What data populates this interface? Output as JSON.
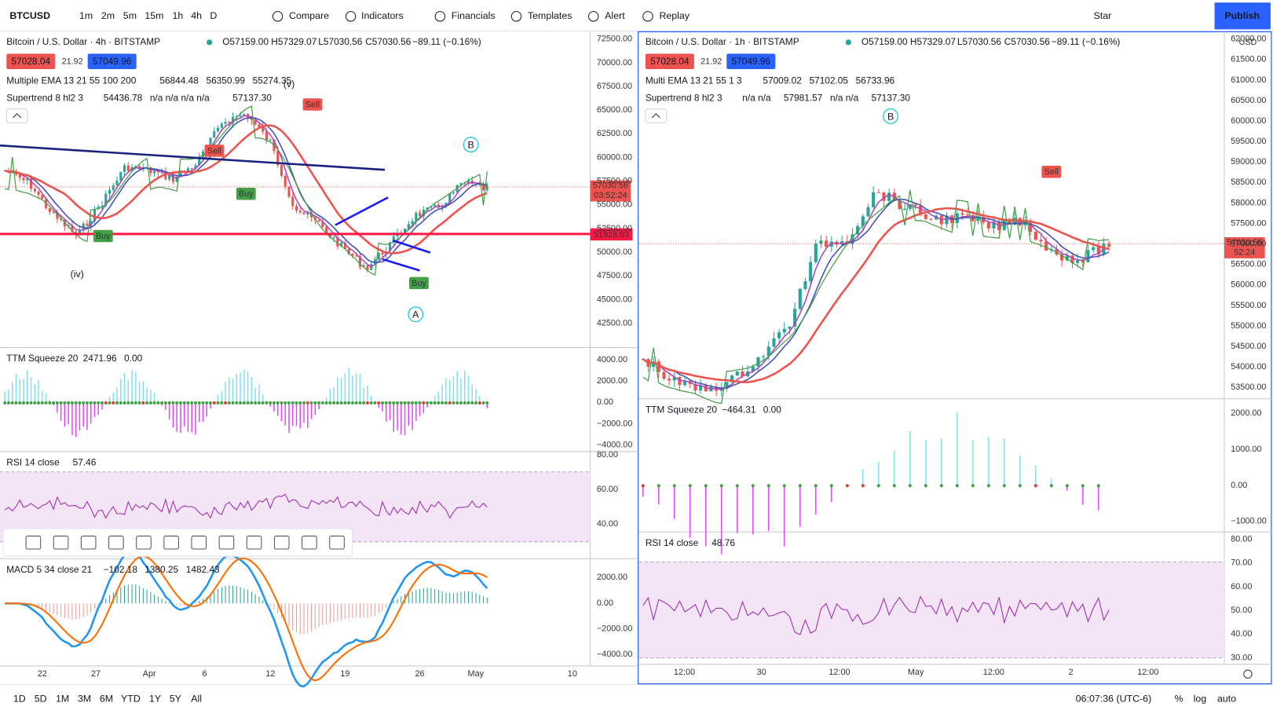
{
  "toolbar": {
    "symbol": "BTCUSD",
    "intervals": [
      "1m",
      "2m",
      "5m",
      "15m",
      "1h",
      "4h",
      "D"
    ],
    "active_interval": "1h",
    "buttons": [
      "Compare",
      "Indicators",
      "Financials",
      "Templates",
      "Alert",
      "Replay"
    ],
    "layout": "Star",
    "publish": "Publish"
  },
  "left_pane": {
    "title": "Bitcoin / U.S. Dollar · 4h · BITSTAMP",
    "ohlc": [
      "O57159.00",
      "H57329.07",
      "L57030.56",
      "C57030.56",
      "−89.11 (−0.16%)"
    ],
    "bid": "57028.04",
    "spread": "21.92",
    "ask": "57049.96",
    "indicators": [
      {
        "name": "Multiple EMA 13 21 55 100 200",
        "values": [
          {
            "text": "56844.48",
            "color": "#9c27b0"
          },
          {
            "text": "56350.99",
            "color": "#2962ff"
          },
          {
            "text": "55274.35",
            "color": "#e53935"
          }
        ]
      },
      {
        "name": "Supertrend 8 hl2 3",
        "values": [
          {
            "text": "54436.78",
            "color": "#43a047"
          },
          {
            "text": "n/a n/a n/a n/a",
            "color": "#131722"
          },
          {
            "text": "57137.30",
            "color": "#2196f3"
          }
        ]
      }
    ],
    "price_axis": [
      "72500.00",
      "70000.00",
      "67500.00",
      "65000.00",
      "62500.00",
      "60000.00",
      "57500.00",
      "55000.00",
      "52500.00",
      "50000.00",
      "47500.00",
      "45000.00",
      "42500.00"
    ],
    "price_tag": "57030.56",
    "countdown": "03:52:24",
    "level_tag": "51928.93",
    "annotations": [
      "(v)",
      "(iv)",
      "Sell",
      "Sell",
      "Buy",
      "Buy",
      "Buy",
      "B",
      "A"
    ],
    "ttm": {
      "name": "TTM Squeeze 20",
      "values": [
        {
          "text": "2471.96",
          "color": "#26c6da"
        },
        {
          "text": "0.00",
          "color": "#2e7d32"
        }
      ],
      "axis": [
        "4000.00",
        "2000.00",
        "0.00",
        "−2000.00",
        "−4000.00"
      ]
    },
    "rsi": {
      "name": "RSI 14 close",
      "values": [
        {
          "text": "57.46",
          "color": "#9c27b0"
        }
      ],
      "axis": [
        "80.00",
        "60.00",
        "40.00"
      ]
    },
    "macd": {
      "name": "MACD 5 34 close 21",
      "values": [
        {
          "text": "−102.18",
          "color": "#e53935"
        },
        {
          "text": "1380.25",
          "color": "#2196f3"
        },
        {
          "text": "1482.43",
          "color": "#ff6d00"
        }
      ],
      "axis": [
        "2000.00",
        "0.00",
        "−2000.00",
        "−4000.00"
      ]
    },
    "time_axis": [
      "22",
      "27",
      "Apr",
      "6",
      "12",
      "19",
      "26",
      "May",
      "10"
    ]
  },
  "right_pane": {
    "title": "Bitcoin / U.S. Dollar · 1h · BITSTAMP",
    "ohlc": [
      "O57159.00",
      "H57329.07",
      "L57030.56",
      "C57030.56",
      "−89.11 (−0.16%)"
    ],
    "bid": "57028.04",
    "spread": "21.92",
    "ask": "57049.96",
    "indicators": [
      {
        "name": "Multi EMA 13 21 55 1 3",
        "values": [
          {
            "text": "57009.02",
            "color": "#9c27b0"
          },
          {
            "text": "57102.05",
            "color": "#2962ff"
          },
          {
            "text": "56733.96",
            "color": "#e53935"
          }
        ]
      },
      {
        "name": "Supertrend 8 hl2 3",
        "values": [
          {
            "text": "n/a n/a",
            "color": "#131722"
          },
          {
            "text": "57981.57",
            "color": "#e53935"
          },
          {
            "text": "n/a n/a",
            "color": "#131722"
          },
          {
            "text": "57137.30",
            "color": "#2196f3"
          }
        ]
      }
    ],
    "currency": "USD",
    "price_axis": [
      "62000.00",
      "61500.00",
      "61000.00",
      "60500.00",
      "60000.00",
      "59500.00",
      "59000.00",
      "58500.00",
      "58000.00",
      "57500.00",
      "57000.00",
      "56500.00",
      "56000.00",
      "55500.00",
      "55000.00",
      "54500.00",
      "54000.00",
      "53500.00"
    ],
    "price_tag": "57030.56",
    "countdown": "52:24",
    "annotations": [
      "B",
      "Sell"
    ],
    "ttm": {
      "name": "TTM Squeeze 20",
      "values": [
        {
          "text": "−464.31",
          "color": "#9c27b0"
        },
        {
          "text": "0.00",
          "color": "#2e7d32"
        }
      ],
      "axis": [
        "2000.00",
        "1000.00",
        "0.00",
        "−1000.00"
      ]
    },
    "rsi": {
      "name": "RSI 14 close",
      "values": [
        {
          "text": "48.76",
          "color": "#9c27b0"
        }
      ],
      "axis": [
        "80.00",
        "70.00",
        "60.00",
        "50.00",
        "40.00",
        "30.00"
      ]
    },
    "time_axis": [
      "12:00",
      "30",
      "12:00",
      "May",
      "12:00",
      "2",
      "12:00"
    ]
  },
  "bottom_bar": {
    "ranges": [
      "1D",
      "5D",
      "1M",
      "3M",
      "6M",
      "YTD",
      "1Y",
      "5Y",
      "All"
    ],
    "clock": "06:07:36 (UTC-6)",
    "options": [
      "%",
      "log",
      "auto"
    ]
  }
}
